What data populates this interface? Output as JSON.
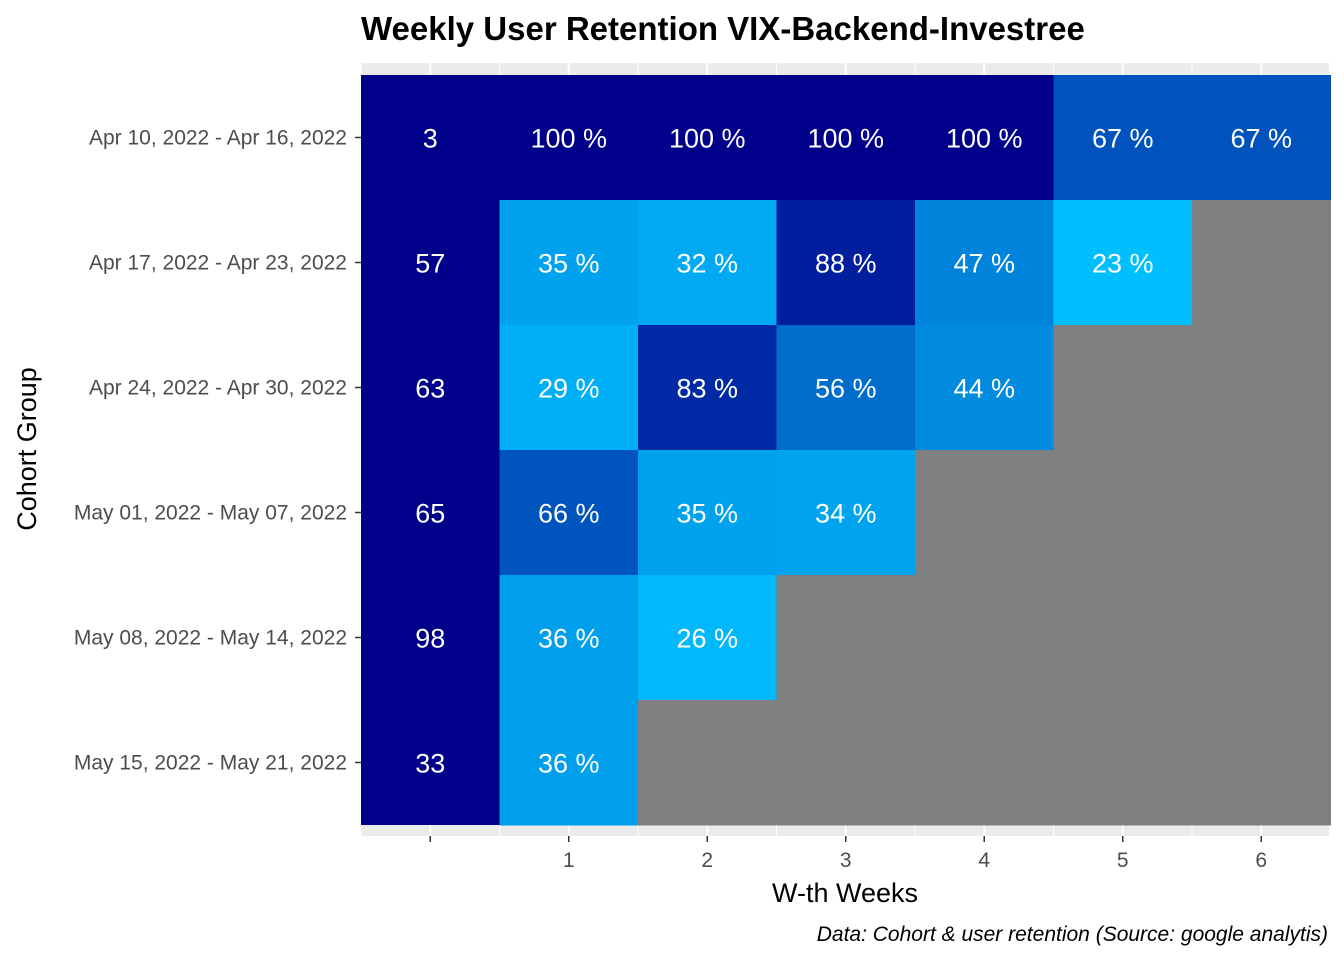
{
  "chart_data": {
    "type": "heatmap",
    "title": "Weekly User Retention VIX-Backend-Investree",
    "xlabel": "W-th Weeks",
    "ylabel": "Cohort Group",
    "caption": "Data: Cohort & user retention (Source: google analytis)",
    "x_tick_labels": [
      "",
      "1",
      "2",
      "3",
      "4",
      "5",
      "6"
    ],
    "rows": [
      {
        "cohort": "Apr 10, 2022 - Apr 16, 2022",
        "size": 3,
        "retention": [
          100,
          100,
          100,
          100,
          67,
          67
        ]
      },
      {
        "cohort": "Apr 17, 2022 - Apr 23, 2022",
        "size": 57,
        "retention": [
          35,
          32,
          88,
          47,
          23,
          null
        ]
      },
      {
        "cohort": "Apr 24, 2022 - Apr 30, 2022",
        "size": 63,
        "retention": [
          29,
          83,
          56,
          44,
          null,
          null
        ]
      },
      {
        "cohort": "May 01, 2022 - May 07, 2022",
        "size": 65,
        "retention": [
          66,
          35,
          34,
          null,
          null,
          null
        ]
      },
      {
        "cohort": "May 08, 2022 - May 14, 2022",
        "size": 98,
        "retention": [
          36,
          26,
          null,
          null,
          null,
          null
        ]
      },
      {
        "cohort": "May 15, 2022 - May 21, 2022",
        "size": 33,
        "retention": [
          36,
          null,
          null,
          null,
          null,
          null
        ]
      }
    ],
    "value_suffix": " %",
    "color_scale": {
      "low": "#00bfff",
      "high": "#00008b",
      "na": "#808080",
      "size_column": "#00008b"
    },
    "panel_background": "#ebebeb",
    "grid": true
  }
}
